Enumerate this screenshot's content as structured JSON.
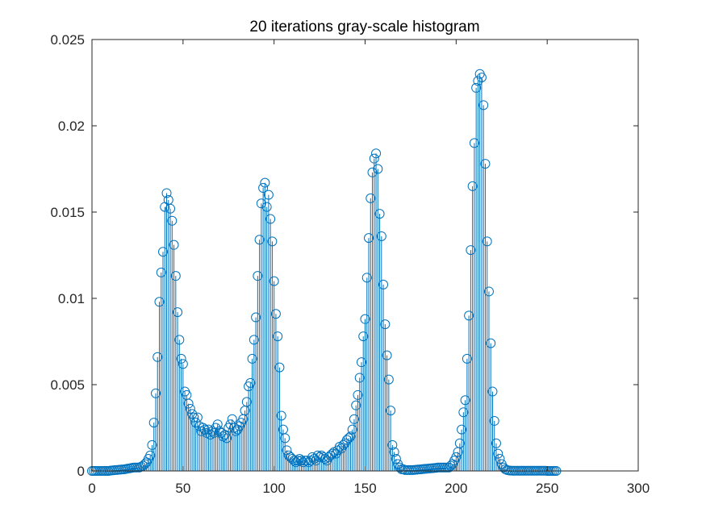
{
  "chart_data": {
    "type": "stem",
    "title": "20 iterations gray-scale histogram",
    "xlabel": "",
    "ylabel": "",
    "xlim": [
      0,
      300
    ],
    "ylim": [
      0,
      0.025
    ],
    "xticks": [
      0,
      50,
      100,
      150,
      200,
      250,
      300
    ],
    "yticks": [
      0,
      0.005,
      0.01,
      0.015,
      0.02,
      0.025
    ],
    "xtick_labels": [
      "0",
      "50",
      "100",
      "150",
      "200",
      "250",
      "300"
    ],
    "ytick_labels": [
      "0",
      "0.005",
      "0.01",
      "0.015",
      "0.02",
      "0.025"
    ],
    "grid": false,
    "color": "#0072BD",
    "marker": "circle",
    "x_start": 0,
    "values": [
      0,
      0,
      0,
      0,
      0,
      0,
      0,
      0,
      0,
      0,
      2e-05,
      3e-05,
      4e-05,
      5e-05,
      6e-05,
      7e-05,
      8e-05,
      9e-05,
      0.0001,
      0.00012,
      0.00014,
      0.00016,
      0.00018,
      0.0002,
      0.0002,
      0.0002,
      0.0002,
      0.00025,
      0.0003,
      0.0004,
      0.0005,
      0.0007,
      0.0009,
      0.0015,
      0.0028,
      0.0045,
      0.0066,
      0.0098,
      0.0115,
      0.0127,
      0.0153,
      0.0161,
      0.0157,
      0.0152,
      0.0145,
      0.0131,
      0.0113,
      0.0092,
      0.0076,
      0.0065,
      0.0062,
      0.0046,
      0.0044,
      0.0039,
      0.0036,
      0.0033,
      0.0031,
      0.0028,
      0.0031,
      0.0026,
      0.0023,
      0.0025,
      0.0024,
      0.0022,
      0.0024,
      0.0021,
      0.0023,
      0.0022,
      0.0025,
      0.0027,
      0.0023,
      0.0022,
      0.002,
      0.0021,
      0.0019,
      0.0025,
      0.0027,
      0.003,
      0.0025,
      0.0023,
      0.0024,
      0.0026,
      0.0028,
      0.003,
      0.0035,
      0.004,
      0.0049,
      0.0051,
      0.0065,
      0.0076,
      0.0089,
      0.0113,
      0.0134,
      0.0155,
      0.0164,
      0.0167,
      0.0153,
      0.016,
      0.0146,
      0.0133,
      0.011,
      0.0091,
      0.0078,
      0.006,
      0.0032,
      0.0024,
      0.0019,
      0.0012,
      0.0009,
      0.0008,
      0.0007,
      0.0006,
      0.0005,
      0.0006,
      0.0007,
      0.0006,
      0.0005,
      0.0006,
      0.0006,
      0.0005,
      0.0006,
      0.0008,
      0.0007,
      0.0006,
      0.0009,
      0.0008,
      0.0009,
      0.0008,
      0.0007,
      0.0006,
      0.0008,
      0.0009,
      0.001,
      0.0011,
      0.001,
      0.0012,
      0.0014,
      0.0013,
      0.0015,
      0.0016,
      0.0018,
      0.0019,
      0.002,
      0.0024,
      0.003,
      0.0038,
      0.0044,
      0.0054,
      0.0063,
      0.0078,
      0.0088,
      0.0112,
      0.0135,
      0.0158,
      0.0173,
      0.0181,
      0.0184,
      0.0175,
      0.0149,
      0.0136,
      0.0108,
      0.0085,
      0.0067,
      0.0053,
      0.0035,
      0.0015,
      0.0011,
      0.0007,
      0.0004,
      0.0002,
      0.0001,
      0.0001,
      5e-05,
      5e-05,
      5e-05,
      5e-05,
      5e-05,
      6e-05,
      7e-05,
      8e-05,
      9e-05,
      0.0001,
      0.00011,
      0.00012,
      0.00013,
      0.00014,
      0.00015,
      0.00016,
      0.00017,
      0.00018,
      0.0002,
      0.0002,
      0.0002,
      0.0002,
      0.0002,
      0.0002,
      0.0002,
      0.0003,
      0.0004,
      0.0006,
      0.0008,
      0.0011,
      0.0016,
      0.0024,
      0.0034,
      0.0041,
      0.0065,
      0.009,
      0.0128,
      0.0165,
      0.019,
      0.0222,
      0.0226,
      0.023,
      0.0228,
      0.0212,
      0.0178,
      0.0133,
      0.0104,
      0.0074,
      0.0046,
      0.0029,
      0.0016,
      0.001,
      0.0007,
      0.0004,
      0.0002,
      0.0001,
      5e-05,
      3e-05,
      2e-05,
      1e-05,
      1e-05,
      1e-05,
      1e-05,
      1e-05,
      1e-05,
      1e-05,
      1e-05,
      1e-05,
      1e-05,
      1e-05,
      1e-05,
      1e-05,
      1e-05,
      1e-05,
      1e-05,
      1e-05,
      1e-05,
      1e-05,
      0,
      0,
      0,
      0,
      0,
      0
    ]
  }
}
